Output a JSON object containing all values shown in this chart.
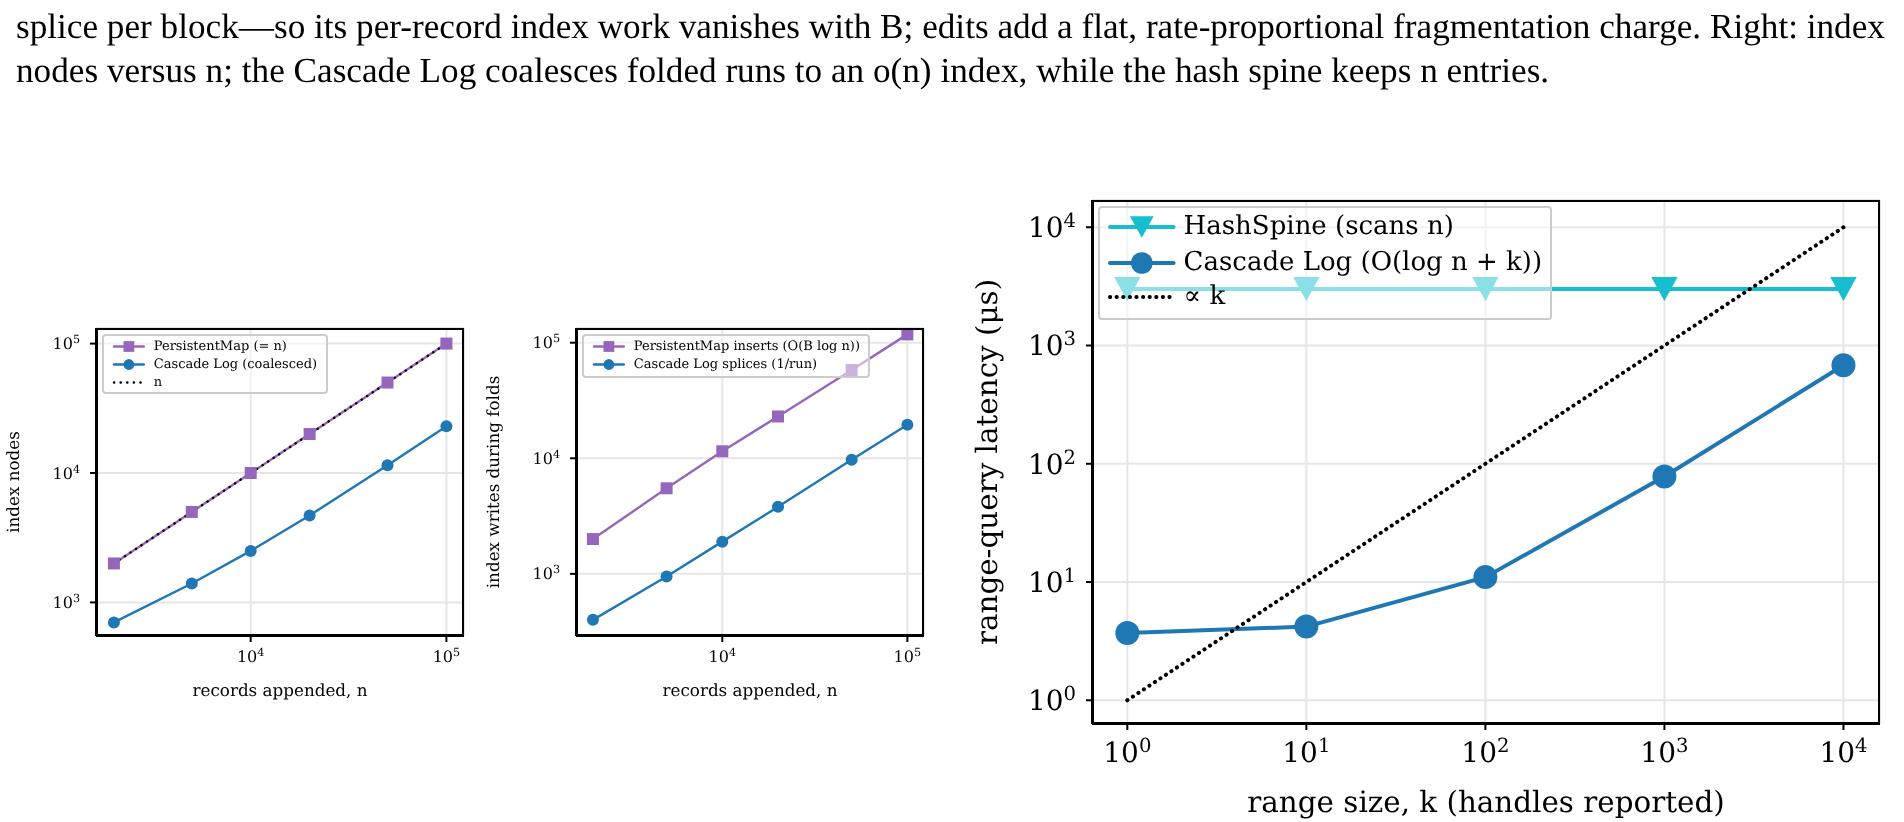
{
  "chart_data": [
    {
      "type": "line",
      "annotations": [
        "splice per block—so its per-record index work vanishes with B; edits add a flat, rate-proportional fragmentation charge. Right: index nodes versus n; the Cascade Log coalesces folded runs to an o(n) index, while the hash spine keeps n entries."
      ],
      "xlabel": "records appended, n",
      "ylabel": "index nodes",
      "x": [
        2000,
        5000,
        10000,
        20000,
        50000,
        100000
      ],
      "log": "xy",
      "grid": true,
      "legend": "top left",
      "series": [
        {
          "name": "PersistentMap (= n)",
          "color": "#9467bd",
          "values": [
            2000,
            5000,
            10000,
            20000,
            50000,
            100000
          ],
          "marker": "square",
          "line_style": "solid"
        },
        {
          "name": "Cascade Log (coalesced)",
          "color": "#1f77b4",
          "values": [
            700,
            1400,
            2500,
            4700,
            11500,
            23000
          ],
          "marker": "circle",
          "line_style": "solid"
        },
        {
          "name": "n",
          "color": "#000000",
          "values": [
            2000,
            5000,
            10000,
            20000,
            50000,
            100000
          ],
          "marker": "none",
          "line_style": "dotted"
        }
      ],
      "xlim": [
        1620,
        123000
      ],
      "xticks": [
        {
          "value": 10000,
          "label": "10$^{4}$"
        },
        {
          "value": 100000,
          "label": "10$^{5}$"
        }
      ],
      "ylim": [
        550,
        132000
      ],
      "yticks": [
        {
          "value": 1000,
          "label": "10$^{3}$"
        },
        {
          "value": 10000,
          "label": "10$^{4}$"
        },
        {
          "value": 100000,
          "label": "10$^{5}$"
        }
      ]
    },
    {
      "type": "line",
      "xlabel": "records appended, n",
      "ylabel": "index writes during folds",
      "x": [
        2000,
        5000,
        10000,
        20000,
        50000,
        100000
      ],
      "log": "xy",
      "grid": true,
      "legend": "top left",
      "series": [
        {
          "name": "PersistentMap inserts (O(B log n))",
          "color": "#9467bd",
          "values": [
            2000,
            5500,
            11500,
            23000,
            58000,
            118000
          ],
          "marker": "square",
          "line_style": "solid"
        },
        {
          "name": "Cascade Log splices (1/run)",
          "color": "#1f77b4",
          "values": [
            400,
            950,
            1900,
            3800,
            9700,
            19500
          ],
          "marker": "circle",
          "line_style": "solid"
        }
      ],
      "xlim": [
        1620,
        123000
      ],
      "xticks": [
        {
          "value": 10000,
          "label": "10$^{4}$"
        },
        {
          "value": 100000,
          "label": "10$^{5}$"
        }
      ],
      "ylim": [
        290,
        134000
      ],
      "yticks": [
        {
          "value": 1000,
          "label": "10$^{3}$"
        },
        {
          "value": 10000,
          "label": "10$^{4}$"
        },
        {
          "value": 100000,
          "label": "10$^{5}$"
        }
      ]
    },
    {
      "type": "line",
      "xlabel": "range size, k (handles reported)",
      "ylabel": "range-query latency (μs)",
      "x": [
        1,
        10,
        100,
        1000,
        10000
      ],
      "log": "xy",
      "grid": true,
      "legend": "top left",
      "series": [
        {
          "name": "HashSpine (scans n)",
          "color": "#17becf",
          "values": [
            3000,
            3000,
            3000,
            3000,
            3000
          ],
          "marker": "triangle",
          "line_style": "solid"
        },
        {
          "name": "Cascade Log (O(log n + k))",
          "color": "#1f77b4",
          "values": [
            3.7,
            4.2,
            11,
            78,
            680
          ],
          "marker": "circle",
          "line_style": "solid"
        },
        {
          "name": "∝ k",
          "color": "#000000",
          "values": [
            1,
            10,
            100,
            1000,
            10000
          ],
          "marker": "none",
          "line_style": "dotted"
        }
      ],
      "xlim": [
        0.635,
        16000
      ],
      "xticks": [
        {
          "value": 1,
          "label": "10$^{0}$"
        },
        {
          "value": 10,
          "label": "10$^{1}$"
        },
        {
          "value": 100,
          "label": "10$^{2}$"
        },
        {
          "value": 1000,
          "label": "10$^{3}$"
        },
        {
          "value": 10000,
          "label": "10$^{4}$"
        }
      ],
      "ylim": [
        0.63,
        17000
      ],
      "yticks": [
        {
          "value": 1,
          "label": "10$^{0}$"
        },
        {
          "value": 10,
          "label": "10$^{1}$"
        },
        {
          "value": 100,
          "label": "10$^{2}$"
        },
        {
          "value": 1000,
          "label": "10$^{3}$"
        },
        {
          "value": 10000,
          "label": "10$^{4}$"
        }
      ]
    }
  ]
}
